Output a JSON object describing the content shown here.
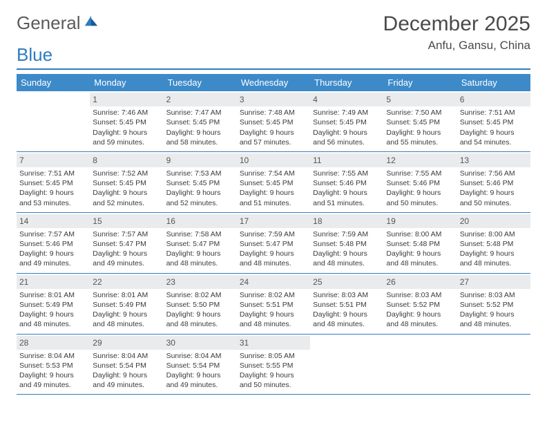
{
  "logo": {
    "word1": "General",
    "word2": "Blue"
  },
  "title": "December 2025",
  "location": "Anfu, Gansu, China",
  "colors": {
    "accent": "#2f7bc1",
    "header_bg": "#3d8ac9",
    "daynum_bg": "#e9ebec",
    "text": "#3a3a3a",
    "background": "#ffffff"
  },
  "day_headers": [
    "Sunday",
    "Monday",
    "Tuesday",
    "Wednesday",
    "Thursday",
    "Friday",
    "Saturday"
  ],
  "weeks": [
    [
      {
        "n": "",
        "rise": "",
        "set": "",
        "day": ""
      },
      {
        "n": "1",
        "rise": "Sunrise: 7:46 AM",
        "set": "Sunset: 5:45 PM",
        "day": "Daylight: 9 hours and 59 minutes."
      },
      {
        "n": "2",
        "rise": "Sunrise: 7:47 AM",
        "set": "Sunset: 5:45 PM",
        "day": "Daylight: 9 hours and 58 minutes."
      },
      {
        "n": "3",
        "rise": "Sunrise: 7:48 AM",
        "set": "Sunset: 5:45 PM",
        "day": "Daylight: 9 hours and 57 minutes."
      },
      {
        "n": "4",
        "rise": "Sunrise: 7:49 AM",
        "set": "Sunset: 5:45 PM",
        "day": "Daylight: 9 hours and 56 minutes."
      },
      {
        "n": "5",
        "rise": "Sunrise: 7:50 AM",
        "set": "Sunset: 5:45 PM",
        "day": "Daylight: 9 hours and 55 minutes."
      },
      {
        "n": "6",
        "rise": "Sunrise: 7:51 AM",
        "set": "Sunset: 5:45 PM",
        "day": "Daylight: 9 hours and 54 minutes."
      }
    ],
    [
      {
        "n": "7",
        "rise": "Sunrise: 7:51 AM",
        "set": "Sunset: 5:45 PM",
        "day": "Daylight: 9 hours and 53 minutes."
      },
      {
        "n": "8",
        "rise": "Sunrise: 7:52 AM",
        "set": "Sunset: 5:45 PM",
        "day": "Daylight: 9 hours and 52 minutes."
      },
      {
        "n": "9",
        "rise": "Sunrise: 7:53 AM",
        "set": "Sunset: 5:45 PM",
        "day": "Daylight: 9 hours and 52 minutes."
      },
      {
        "n": "10",
        "rise": "Sunrise: 7:54 AM",
        "set": "Sunset: 5:45 PM",
        "day": "Daylight: 9 hours and 51 minutes."
      },
      {
        "n": "11",
        "rise": "Sunrise: 7:55 AM",
        "set": "Sunset: 5:46 PM",
        "day": "Daylight: 9 hours and 51 minutes."
      },
      {
        "n": "12",
        "rise": "Sunrise: 7:55 AM",
        "set": "Sunset: 5:46 PM",
        "day": "Daylight: 9 hours and 50 minutes."
      },
      {
        "n": "13",
        "rise": "Sunrise: 7:56 AM",
        "set": "Sunset: 5:46 PM",
        "day": "Daylight: 9 hours and 50 minutes."
      }
    ],
    [
      {
        "n": "14",
        "rise": "Sunrise: 7:57 AM",
        "set": "Sunset: 5:46 PM",
        "day": "Daylight: 9 hours and 49 minutes."
      },
      {
        "n": "15",
        "rise": "Sunrise: 7:57 AM",
        "set": "Sunset: 5:47 PM",
        "day": "Daylight: 9 hours and 49 minutes."
      },
      {
        "n": "16",
        "rise": "Sunrise: 7:58 AM",
        "set": "Sunset: 5:47 PM",
        "day": "Daylight: 9 hours and 48 minutes."
      },
      {
        "n": "17",
        "rise": "Sunrise: 7:59 AM",
        "set": "Sunset: 5:47 PM",
        "day": "Daylight: 9 hours and 48 minutes."
      },
      {
        "n": "18",
        "rise": "Sunrise: 7:59 AM",
        "set": "Sunset: 5:48 PM",
        "day": "Daylight: 9 hours and 48 minutes."
      },
      {
        "n": "19",
        "rise": "Sunrise: 8:00 AM",
        "set": "Sunset: 5:48 PM",
        "day": "Daylight: 9 hours and 48 minutes."
      },
      {
        "n": "20",
        "rise": "Sunrise: 8:00 AM",
        "set": "Sunset: 5:48 PM",
        "day": "Daylight: 9 hours and 48 minutes."
      }
    ],
    [
      {
        "n": "21",
        "rise": "Sunrise: 8:01 AM",
        "set": "Sunset: 5:49 PM",
        "day": "Daylight: 9 hours and 48 minutes."
      },
      {
        "n": "22",
        "rise": "Sunrise: 8:01 AM",
        "set": "Sunset: 5:49 PM",
        "day": "Daylight: 9 hours and 48 minutes."
      },
      {
        "n": "23",
        "rise": "Sunrise: 8:02 AM",
        "set": "Sunset: 5:50 PM",
        "day": "Daylight: 9 hours and 48 minutes."
      },
      {
        "n": "24",
        "rise": "Sunrise: 8:02 AM",
        "set": "Sunset: 5:51 PM",
        "day": "Daylight: 9 hours and 48 minutes."
      },
      {
        "n": "25",
        "rise": "Sunrise: 8:03 AM",
        "set": "Sunset: 5:51 PM",
        "day": "Daylight: 9 hours and 48 minutes."
      },
      {
        "n": "26",
        "rise": "Sunrise: 8:03 AM",
        "set": "Sunset: 5:52 PM",
        "day": "Daylight: 9 hours and 48 minutes."
      },
      {
        "n": "27",
        "rise": "Sunrise: 8:03 AM",
        "set": "Sunset: 5:52 PM",
        "day": "Daylight: 9 hours and 48 minutes."
      }
    ],
    [
      {
        "n": "28",
        "rise": "Sunrise: 8:04 AM",
        "set": "Sunset: 5:53 PM",
        "day": "Daylight: 9 hours and 49 minutes."
      },
      {
        "n": "29",
        "rise": "Sunrise: 8:04 AM",
        "set": "Sunset: 5:54 PM",
        "day": "Daylight: 9 hours and 49 minutes."
      },
      {
        "n": "30",
        "rise": "Sunrise: 8:04 AM",
        "set": "Sunset: 5:54 PM",
        "day": "Daylight: 9 hours and 49 minutes."
      },
      {
        "n": "31",
        "rise": "Sunrise: 8:05 AM",
        "set": "Sunset: 5:55 PM",
        "day": "Daylight: 9 hours and 50 minutes."
      },
      {
        "n": "",
        "rise": "",
        "set": "",
        "day": ""
      },
      {
        "n": "",
        "rise": "",
        "set": "",
        "day": ""
      },
      {
        "n": "",
        "rise": "",
        "set": "",
        "day": ""
      }
    ]
  ]
}
